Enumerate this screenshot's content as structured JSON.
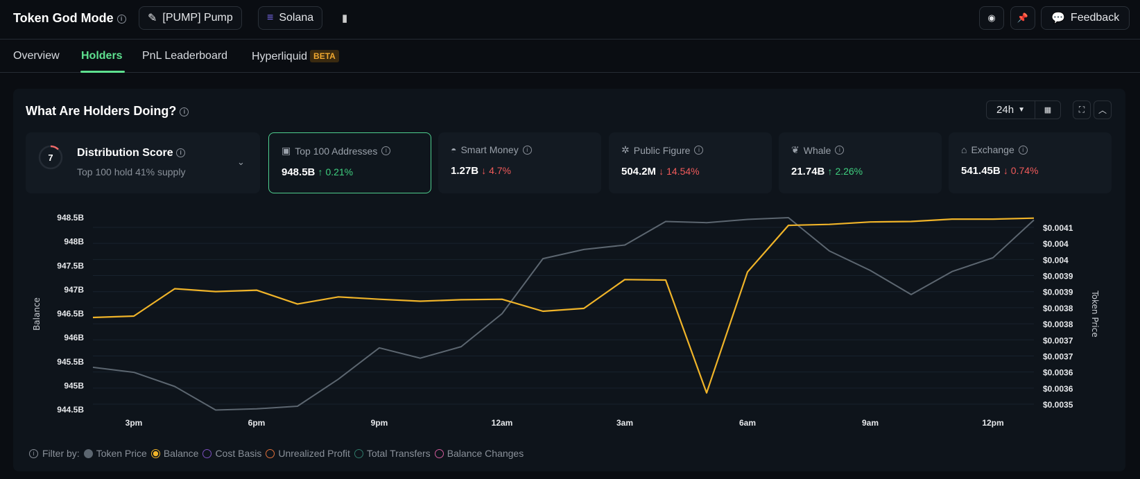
{
  "header": {
    "title": "Token God Mode",
    "token": "[PUMP] Pump",
    "chain": "Solana",
    "feedback": "Feedback",
    "icons": [
      "info-icon",
      "pencil-icon",
      "solana-icon",
      "copy-icon",
      "watch-icon",
      "pin-icon",
      "chat-icon"
    ]
  },
  "tabs": [
    {
      "label": "Overview"
    },
    {
      "label": "Holders",
      "active": true
    },
    {
      "label": "PnL Leaderboard"
    },
    {
      "label": "Hyperliquid",
      "badge": "BETA"
    }
  ],
  "card": {
    "title": "What Are Holders Doing?",
    "range": "24h"
  },
  "distribution": {
    "title": "Distribution Score",
    "score": "7",
    "subtitle": "Top 100 hold 41% supply"
  },
  "stats": [
    {
      "label": "Top 100 Addresses",
      "icon": "money-icon",
      "value": "948.5B",
      "change": "0.21%",
      "dir": "up",
      "selected": true
    },
    {
      "label": "Smart Money",
      "icon": "smart-money-icon",
      "value": "1.27B",
      "change": "4.7%",
      "dir": "down"
    },
    {
      "label": "Public Figure",
      "icon": "public-figure-icon",
      "value": "504.2M",
      "change": "14.54%",
      "dir": "down"
    },
    {
      "label": "Whale",
      "icon": "whale-icon",
      "value": "21.74B",
      "change": "2.26%",
      "dir": "up"
    },
    {
      "label": "Exchange",
      "icon": "bank-icon",
      "value": "541.45B",
      "change": "0.74%",
      "dir": "down"
    }
  ],
  "legend": {
    "prefix": "Filter by:",
    "items": [
      {
        "label": "Token Price",
        "color": "#5c6670",
        "state": "filled"
      },
      {
        "label": "Balance",
        "color": "#f0b429",
        "state": "selected"
      },
      {
        "label": "Cost Basis",
        "color": "#7b4fc0",
        "state": "off"
      },
      {
        "label": "Unrealized Profit",
        "color": "#e0703a",
        "state": "off"
      },
      {
        "label": "Total Transfers",
        "color": "#2f7a6a",
        "state": "off"
      },
      {
        "label": "Balance Changes",
        "color": "#d05a9a",
        "state": "off"
      }
    ]
  },
  "chart_data": {
    "type": "line",
    "xlabel": "",
    "ylabel": "Balance",
    "y2label": "Token Price",
    "x": [
      "2pm",
      "3pm",
      "4pm",
      "5pm",
      "6pm",
      "7pm",
      "8pm",
      "9pm",
      "10pm",
      "11pm",
      "12am",
      "1am",
      "2am",
      "3am",
      "4am",
      "5am",
      "6am",
      "7am",
      "8am",
      "9am",
      "10am",
      "11am",
      "12pm",
      "1pm"
    ],
    "xticks": [
      "3pm",
      "6pm",
      "9pm",
      "12am",
      "3am",
      "6am",
      "9am",
      "12pm"
    ],
    "ylim": [
      944.5,
      948.5
    ],
    "yticks": [
      "948.5B",
      "948B",
      "947.5B",
      "947B",
      "946.5B",
      "946B",
      "945.5B",
      "945B",
      "944.5B"
    ],
    "y2lim": [
      0.0035,
      0.0041
    ],
    "y2ticks": [
      "$0.0041",
      "$0.004",
      "$0.004",
      "$0.0039",
      "$0.0039",
      "$0.0038",
      "$0.0038",
      "$0.0037",
      "$0.0037",
      "$0.0036",
      "$0.0036",
      "$0.0035"
    ],
    "grid": true,
    "series": [
      {
        "name": "Balance",
        "axis": "left",
        "color": "#f0b429",
        "unit": "B",
        "values": [
          946.42,
          946.45,
          947.02,
          946.96,
          946.99,
          946.7,
          946.85,
          946.8,
          946.76,
          946.79,
          946.8,
          946.55,
          946.61,
          947.21,
          947.2,
          944.85,
          947.37,
          948.34,
          948.36,
          948.41,
          948.42,
          948.47,
          948.47,
          948.49
        ]
      },
      {
        "name": "Token Price",
        "axis": "right",
        "color": "#5c6670",
        "unit": "$",
        "values": [
          0.003625,
          0.003608,
          0.00356,
          0.00348,
          0.003484,
          0.003493,
          0.003585,
          0.003691,
          0.003656,
          0.003695,
          0.003807,
          0.003994,
          0.004025,
          0.00404,
          0.00412,
          0.004116,
          0.004127,
          0.004133,
          0.00402,
          0.003954,
          0.003872,
          0.00395,
          0.003997,
          0.004125
        ]
      }
    ]
  }
}
